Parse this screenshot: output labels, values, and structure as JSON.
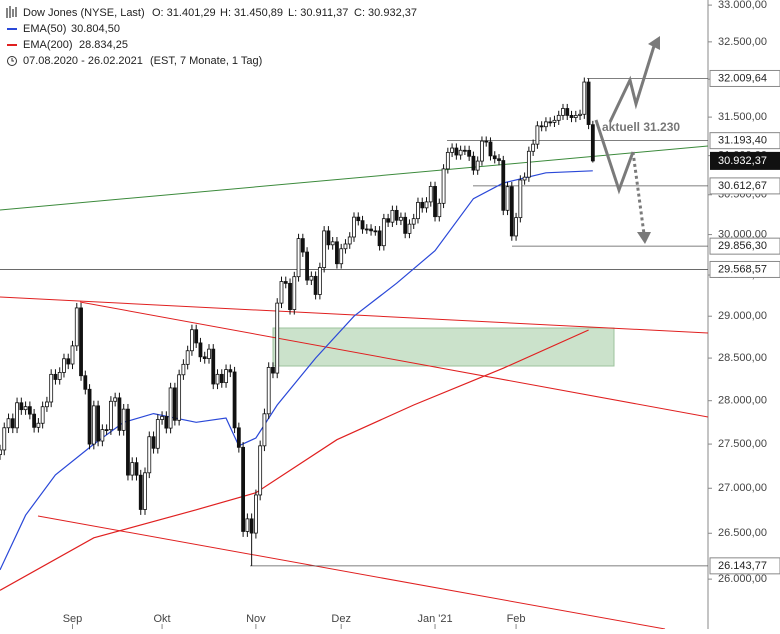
{
  "chart_data": {
    "type": "candlestick",
    "title": "Dow Jones (NYSE, Last)",
    "info": [
      "O: 31.401,29",
      "H: 31.450,89",
      "L: 30.911,37",
      "C: 30.932,37"
    ],
    "period": "07.08.2020 - 26.02.2021",
    "period_note": "(EST, 7 Monate, 1 Tag)",
    "log_scale": true,
    "ylim": [
      25467,
      33070
    ],
    "yticks": [
      {
        "value": 33000,
        "label": "33.000,00"
      },
      {
        "value": 32500,
        "label": "32.500,00"
      },
      {
        "value": 32000,
        "label": "32.000,00"
      },
      {
        "value": 31500,
        "label": "31.500,00"
      },
      {
        "value": 31000,
        "label": "31.000,00"
      },
      {
        "value": 30500,
        "label": "30.500,00"
      },
      {
        "value": 30000,
        "label": "30.000,00"
      },
      {
        "value": 29500,
        "label": "29.500,00"
      },
      {
        "value": 29000,
        "label": "29.000,00"
      },
      {
        "value": 28500,
        "label": "28.500,00"
      },
      {
        "value": 28000,
        "label": "28.000,00"
      },
      {
        "value": 27500,
        "label": "27.500,00"
      },
      {
        "value": 27000,
        "label": "27.000,00"
      },
      {
        "value": 26500,
        "label": "26.500,00"
      },
      {
        "value": 26000,
        "label": "26.000,00"
      }
    ],
    "xlim": [
      0,
      166
    ],
    "xticks": [
      {
        "value": 17,
        "label": "Sep"
      },
      {
        "value": 38,
        "label": "Okt"
      },
      {
        "value": 60,
        "label": "Nov"
      },
      {
        "value": 80,
        "label": "Dez"
      },
      {
        "value": 102,
        "label": "Jan '21"
      },
      {
        "value": 121,
        "label": "Feb"
      }
    ],
    "up_color": "#ffffff",
    "down_color": "#111111",
    "candles": {
      "open": [
        27380,
        27433,
        27687,
        27791,
        27686,
        27976,
        27896,
        27931,
        27844,
        27692,
        27739,
        27930,
        27985,
        28308,
        28248,
        28331,
        28492,
        28430,
        28645,
        29100,
        28292,
        28133,
        27500,
        27940,
        27535,
        27666,
        27665,
        27993,
        28033,
        27657,
        27902,
        27148,
        27289,
        27147,
        26763,
        27174,
        27584,
        27452,
        27782,
        27817,
        27683,
        28149,
        27773,
        28303,
        28426,
        28587,
        28838,
        28680,
        28515,
        28494,
        28606,
        28195,
        28308,
        28211,
        28364,
        28336,
        27686,
        27463,
        26520,
        26659,
        26502,
        26925,
        27480,
        27848,
        28390,
        28323,
        29158,
        29421,
        29398,
        29080,
        29480,
        29950,
        29783,
        29438,
        29484,
        29263,
        29592,
        30046,
        29873,
        29910,
        29639,
        29824,
        29883,
        29970,
        30218,
        30174,
        30070,
        30069,
        30047,
        30046,
        29862,
        30199,
        30155,
        30303,
        30179,
        30216,
        30015,
        30130,
        30199,
        30404,
        30335,
        30410,
        30606,
        30224,
        30392,
        30830,
        31042,
        31098,
        31008,
        31069,
        31068,
        30992,
        30814,
        30930,
        31188,
        31176,
        30997,
        30960,
        30937,
        30304,
        30603,
        29983,
        30212,
        30688,
        30724,
        31056,
        31148,
        31386,
        31375,
        31438,
        31431,
        31458,
        31523,
        31613,
        31522,
        31494,
        31522,
        31537,
        31962,
        31401
      ],
      "high": [
        27493,
        27747,
        27851,
        27851,
        28036,
        28036,
        27991,
        27991,
        27904,
        27799,
        27990,
        28045,
        28368,
        28368,
        28391,
        28552,
        28552,
        28705,
        29160,
        29160,
        28352,
        28193,
        28000,
        28000,
        27726,
        27726,
        28053,
        28093,
        28093,
        27962,
        27962,
        27349,
        27349,
        27207,
        27234,
        27644,
        27644,
        27842,
        27877,
        27877,
        28209,
        28209,
        28363,
        28486,
        28647,
        28898,
        28898,
        28740,
        28575,
        28666,
        28666,
        28368,
        28368,
        28424,
        28424,
        28396,
        27746,
        27523,
        26719,
        26719,
        26985,
        27540,
        27908,
        28450,
        28450,
        29218,
        29481,
        29481,
        29458,
        29540,
        30010,
        30010,
        29843,
        29544,
        29544,
        29652,
        30106,
        30106,
        29970,
        29970,
        29884,
        29943,
        30030,
        30278,
        30278,
        30234,
        30130,
        30129,
        30107,
        30106,
        30259,
        30259,
        30363,
        30363,
        30276,
        30276,
        30190,
        30259,
        30464,
        30464,
        30470,
        30666,
        30666,
        30452,
        30890,
        31102,
        31158,
        31158,
        31129,
        31129,
        31128,
        31052,
        30990,
        31248,
        31248,
        31236,
        31057,
        31020,
        30997,
        30663,
        30663,
        30272,
        30748,
        30784,
        31116,
        31208,
        31446,
        31446,
        31498,
        31498,
        31518,
        31583,
        31673,
        31673,
        31582,
        31582,
        31597,
        32022,
        32010,
        31451
      ],
      "low": [
        27320,
        27373,
        27627,
        27626,
        27626,
        27836,
        27836,
        27784,
        27632,
        27632,
        27679,
        27870,
        27925,
        28188,
        28188,
        28271,
        28370,
        28370,
        28585,
        28232,
        28073,
        27440,
        27440,
        27475,
        27475,
        27605,
        27605,
        27933,
        27597,
        27597,
        27088,
        27088,
        27087,
        26703,
        26703,
        27114,
        27392,
        27392,
        27722,
        27623,
        27623,
        27713,
        27713,
        28243,
        28366,
        28527,
        28620,
        28455,
        28434,
        28434,
        28135,
        28135,
        28151,
        28151,
        28276,
        27626,
        27403,
        26460,
        26460,
        26143,
        26442,
        26865,
        27420,
        27788,
        28263,
        28263,
        29098,
        29338,
        29020,
        29020,
        29420,
        29723,
        29378,
        29378,
        29203,
        29203,
        29532,
        29813,
        29813,
        29579,
        29579,
        29764,
        29823,
        29910,
        30114,
        30010,
        30009,
        29987,
        29986,
        29802,
        29802,
        30095,
        30095,
        30119,
        30119,
        29955,
        29955,
        30070,
        30139,
        30275,
        30275,
        30350,
        30164,
        30164,
        30332,
        30770,
        30982,
        30948,
        30948,
        31008,
        30932,
        30754,
        30754,
        30870,
        31116,
        30937,
        30900,
        30877,
        30244,
        30244,
        29923,
        29923,
        30152,
        30628,
        30664,
        30996,
        31088,
        31315,
        31315,
        31378,
        31371,
        31398,
        31463,
        31462,
        31434,
        31434,
        31462,
        31477,
        31343,
        30911
      ],
      "close": [
        27433,
        27687,
        27791,
        27686,
        27976,
        27896,
        27931,
        27844,
        27692,
        27739,
        27930,
        27985,
        28308,
        28248,
        28331,
        28492,
        28430,
        28645,
        29100,
        28292,
        28133,
        27500,
        27940,
        27535,
        27666,
        27665,
        27993,
        28033,
        27657,
        27902,
        27148,
        27289,
        27147,
        26763,
        27174,
        27584,
        27452,
        27782,
        27817,
        27683,
        28149,
        27773,
        28303,
        28426,
        28587,
        28838,
        28680,
        28515,
        28494,
        28606,
        28195,
        28308,
        28211,
        28364,
        28336,
        27686,
        27463,
        26520,
        26659,
        26502,
        26925,
        27480,
        27848,
        28390,
        28323,
        29158,
        29421,
        29398,
        29080,
        29480,
        29950,
        29783,
        29438,
        29484,
        29263,
        29592,
        30046,
        29873,
        29910,
        29639,
        29824,
        29883,
        29970,
        30218,
        30174,
        30070,
        30069,
        30047,
        30046,
        29862,
        30199,
        30155,
        30303,
        30179,
        30216,
        30015,
        30130,
        30199,
        30404,
        30335,
        30410,
        30606,
        30224,
        30392,
        30830,
        31042,
        31098,
        31008,
        31069,
        31068,
        30992,
        30814,
        30930,
        31188,
        31176,
        30997,
        30960,
        30937,
        30304,
        30603,
        29983,
        30212,
        30688,
        30724,
        31056,
        31148,
        31386,
        31375,
        31438,
        31431,
        31458,
        31523,
        31613,
        31522,
        31494,
        31522,
        31537,
        31962,
        31403,
        30932
      ]
    },
    "overlays": [
      {
        "name": "EMA(50)",
        "value_label": "30.804,50",
        "color": "#2a48d8",
        "x": [
          0,
          6,
          13,
          22,
          29,
          36,
          46,
          53,
          56,
          60,
          65,
          74,
          83,
          93,
          102,
          111,
          118,
          128,
          139
        ],
        "values": [
          26100,
          26700,
          27150,
          27500,
          27750,
          27850,
          27750,
          27800,
          27480,
          27570,
          27950,
          28500,
          29000,
          29400,
          29800,
          30450,
          30650,
          30780,
          30805
        ]
      },
      {
        "name": "EMA(200)",
        "value_label": "28.834,25",
        "color": "#e02020",
        "x": [
          0,
          22,
          46,
          60,
          79,
          97,
          118,
          138
        ],
        "values": [
          25880,
          26450,
          26760,
          26950,
          27550,
          27950,
          28380,
          28834
        ]
      }
    ],
    "levels": [
      {
        "value": 32009.64,
        "label": "32.009,64"
      },
      {
        "value": 31193.4,
        "label": "31.193,40"
      },
      {
        "value": 30612.67,
        "label": "30.612,67"
      },
      {
        "value": 29856.3,
        "label": "29.856,30"
      },
      {
        "value": 29568.57,
        "label": "29.568,57"
      },
      {
        "value": 26143.77,
        "label": "26.143,77"
      }
    ],
    "last_price": {
      "value": 30932.37,
      "label": "30.932,37"
    },
    "annotation": "aktuell 31.230"
  }
}
